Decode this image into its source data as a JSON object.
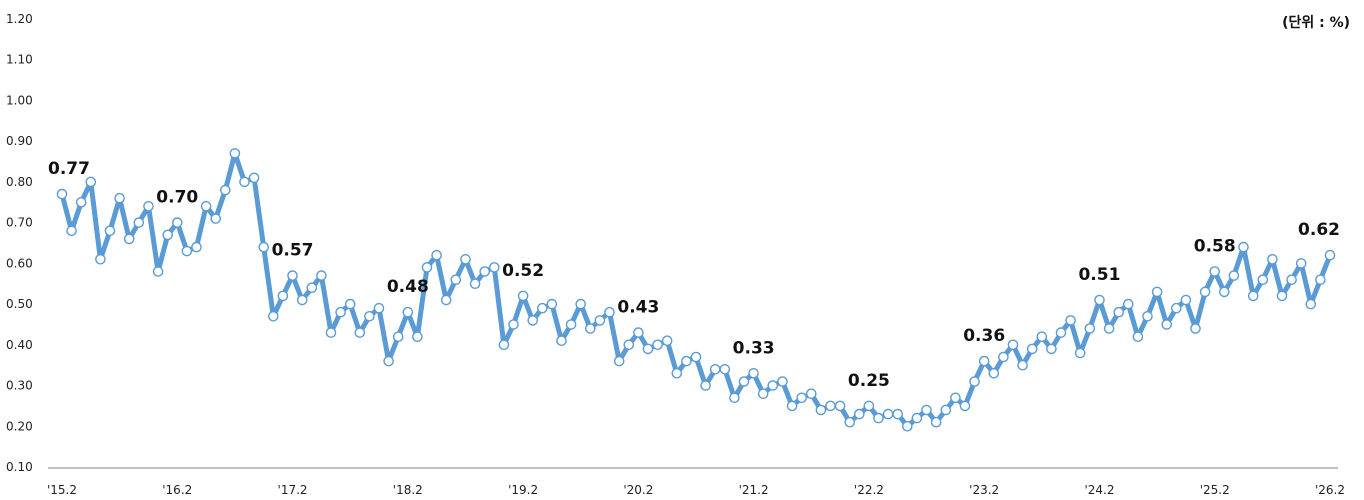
{
  "unit_label": "(단위 : %)",
  "colors": {
    "line": "#5b9bd5",
    "marker_fill": "#ffffff",
    "axis": "#7f7f7f"
  },
  "chart_data": {
    "type": "line",
    "title": "",
    "xlabel": "",
    "ylabel": "",
    "ylim": [
      0.1,
      1.2
    ],
    "yticks": [
      "0.10",
      "0.20",
      "0.30",
      "0.40",
      "0.50",
      "0.60",
      "0.70",
      "0.80",
      "0.90",
      "1.00",
      "1.10",
      "1.20"
    ],
    "grid": false,
    "xtick_labels": [
      {
        "index": 0,
        "label": "'15.2"
      },
      {
        "index": 12,
        "label": "'16.2"
      },
      {
        "index": 24,
        "label": "'17.2"
      },
      {
        "index": 36,
        "label": "'18.2"
      },
      {
        "index": 48,
        "label": "'19.2"
      },
      {
        "index": 60,
        "label": "'20.2"
      },
      {
        "index": 72,
        "label": "'21.2"
      },
      {
        "index": 84,
        "label": "'22.2"
      },
      {
        "index": 96,
        "label": "'23.2"
      },
      {
        "index": 108,
        "label": "'24.2"
      },
      {
        "index": 120,
        "label": "'25.2"
      },
      {
        "index": 132,
        "label": "'26.2"
      }
    ],
    "annotations": [
      {
        "index": 0,
        "label": "0.77"
      },
      {
        "index": 12,
        "label": "0.70"
      },
      {
        "index": 24,
        "label": "0.57"
      },
      {
        "index": 36,
        "label": "0.48"
      },
      {
        "index": 48,
        "label": "0.52"
      },
      {
        "index": 60,
        "label": "0.43"
      },
      {
        "index": 72,
        "label": "0.33"
      },
      {
        "index": 84,
        "label": "0.25"
      },
      {
        "index": 96,
        "label": "0.36"
      },
      {
        "index": 108,
        "label": "0.51"
      },
      {
        "index": 120,
        "label": "0.58"
      },
      {
        "index": 132,
        "label": "0.62"
      }
    ],
    "series": [
      {
        "values": [
          0.77,
          0.68,
          0.75,
          0.8,
          0.61,
          0.68,
          0.76,
          0.66,
          0.7,
          0.74,
          0.58,
          0.67,
          0.7,
          0.63,
          0.64,
          0.74,
          0.71,
          0.78,
          0.87,
          0.8,
          0.81,
          0.64,
          0.47,
          0.52,
          0.57,
          0.51,
          0.54,
          0.57,
          0.43,
          0.48,
          0.5,
          0.43,
          0.47,
          0.49,
          0.36,
          0.42,
          0.48,
          0.42,
          0.59,
          0.62,
          0.51,
          0.56,
          0.61,
          0.55,
          0.58,
          0.59,
          0.4,
          0.45,
          0.52,
          0.46,
          0.49,
          0.5,
          0.41,
          0.45,
          0.5,
          0.44,
          0.46,
          0.48,
          0.36,
          0.4,
          0.43,
          0.39,
          0.4,
          0.41,
          0.33,
          0.36,
          0.37,
          0.3,
          0.34,
          0.34,
          0.27,
          0.31,
          0.33,
          0.28,
          0.3,
          0.31,
          0.25,
          0.27,
          0.28,
          0.24,
          0.25,
          0.25,
          0.21,
          0.23,
          0.25,
          0.22,
          0.23,
          0.23,
          0.2,
          0.22,
          0.24,
          0.21,
          0.24,
          0.27,
          0.25,
          0.31,
          0.36,
          0.33,
          0.37,
          0.4,
          0.35,
          0.39,
          0.42,
          0.39,
          0.43,
          0.46,
          0.38,
          0.44,
          0.51,
          0.44,
          0.48,
          0.5,
          0.42,
          0.47,
          0.53,
          0.45,
          0.49,
          0.51,
          0.44,
          0.53,
          0.58,
          0.53,
          0.57,
          0.64,
          0.52,
          0.56,
          0.61,
          0.52,
          0.56,
          0.6,
          0.5,
          0.56,
          0.62
        ]
      }
    ]
  }
}
